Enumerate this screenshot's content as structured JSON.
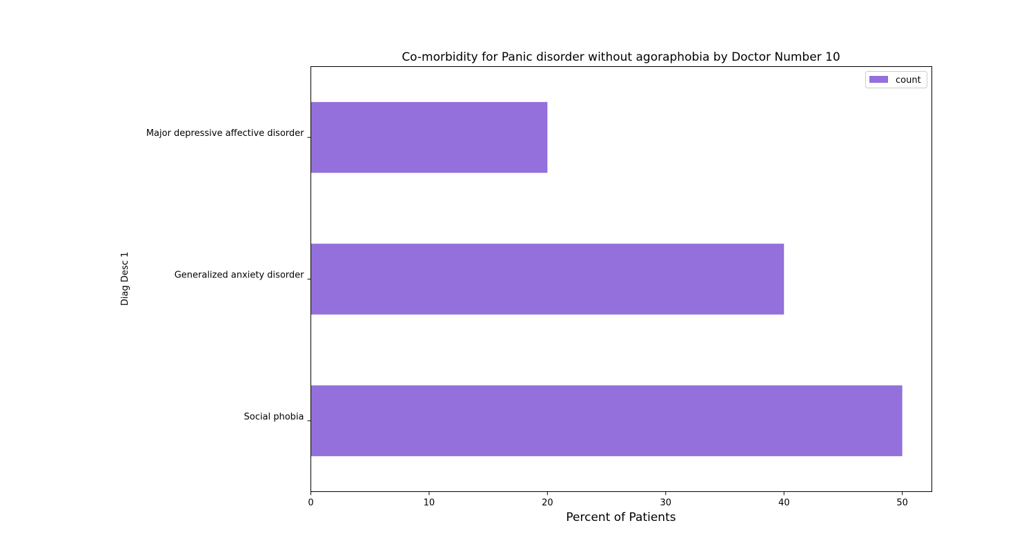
{
  "chart_data": {
    "type": "bar",
    "orientation": "horizontal",
    "title": "Co-morbidity for Panic disorder without agoraphobia by Doctor Number 10",
    "xlabel": "Percent of Patients",
    "ylabel": "Diag Desc 1",
    "categories": [
      "Major depressive affective disorder",
      "Generalized anxiety disorder",
      "Social phobia"
    ],
    "series": [
      {
        "name": "count",
        "values": [
          20,
          40,
          50
        ],
        "color": "#9370db"
      }
    ],
    "xlim": [
      0,
      52.5
    ],
    "xticks": [
      0,
      10,
      20,
      30,
      40,
      50
    ],
    "grid": false,
    "legend": "top-right"
  }
}
